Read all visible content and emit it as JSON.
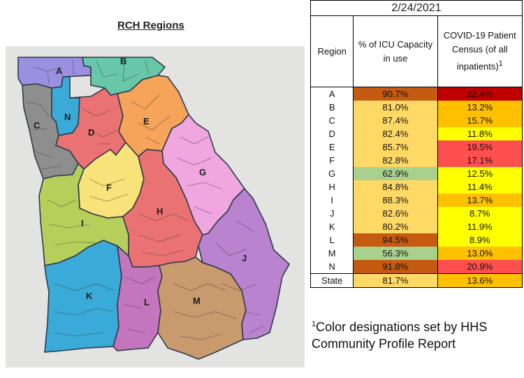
{
  "map": {
    "title": "RCH Regions",
    "regions": [
      {
        "id": "A",
        "color": "#9b8fe0"
      },
      {
        "id": "B",
        "color": "#67c7a8"
      },
      {
        "id": "C",
        "color": "#8e8e8e"
      },
      {
        "id": "N",
        "color": "#3aaad8"
      },
      {
        "id": "D",
        "color": "#ea7272"
      },
      {
        "id": "E",
        "color": "#f5a45a"
      },
      {
        "id": "G",
        "color": "#f0a6df"
      },
      {
        "id": "F",
        "color": "#f8e27a"
      },
      {
        "id": "H",
        "color": "#ea7272"
      },
      {
        "id": "I",
        "color": "#b5cf5a"
      },
      {
        "id": "J",
        "color": "#b983cf"
      },
      {
        "id": "K",
        "color": "#3aaad8"
      },
      {
        "id": "L",
        "color": "#c375bd"
      },
      {
        "id": "M",
        "color": "#c99a6e"
      }
    ]
  },
  "table": {
    "date": "2/24/2021",
    "headers": {
      "region": "Region",
      "icu": "% of ICU Capacity in use",
      "census": "COVID-19 Patient Census (of all inpatients)",
      "census_sup": "1"
    },
    "rows": [
      {
        "region": "A",
        "icu": "90.7%",
        "icu_color": "#c55a11",
        "census": "22.4%",
        "census_color": "#c00000"
      },
      {
        "region": "B",
        "icu": "81.0%",
        "icu_color": "#ffd966",
        "census": "13.2%",
        "census_color": "#ffc000"
      },
      {
        "region": "C",
        "icu": "87.4%",
        "icu_color": "#ffd966",
        "census": "15.7%",
        "census_color": "#ffc000"
      },
      {
        "region": "D",
        "icu": "82.4%",
        "icu_color": "#ffd966",
        "census": "11.8%",
        "census_color": "#ffff00"
      },
      {
        "region": "E",
        "icu": "85.7%",
        "icu_color": "#ffd966",
        "census": "19.5%",
        "census_color": "#ff5050"
      },
      {
        "region": "F",
        "icu": "82.8%",
        "icu_color": "#ffd966",
        "census": "17.1%",
        "census_color": "#ff5050"
      },
      {
        "region": "G",
        "icu": "62.9%",
        "icu_color": "#a9d18e",
        "census": "12.5%",
        "census_color": "#ffff00"
      },
      {
        "region": "H",
        "icu": "84.8%",
        "icu_color": "#ffd966",
        "census": "11.4%",
        "census_color": "#ffff00"
      },
      {
        "region": "I",
        "icu": "88.3%",
        "icu_color": "#ffd966",
        "census": "13.7%",
        "census_color": "#ffc000"
      },
      {
        "region": "J",
        "icu": "82.6%",
        "icu_color": "#ffd966",
        "census": "8.7%",
        "census_color": "#ffff00"
      },
      {
        "region": "K",
        "icu": "80.2%",
        "icu_color": "#ffd966",
        "census": "11.9%",
        "census_color": "#ffff00"
      },
      {
        "region": "L",
        "icu": "94.5%",
        "icu_color": "#c55a11",
        "census": "8.9%",
        "census_color": "#ffff00"
      },
      {
        "region": "M",
        "icu": "56.3%",
        "icu_color": "#a9d18e",
        "census": "13.0%",
        "census_color": "#ffc000"
      },
      {
        "region": "N",
        "icu": "91.8%",
        "icu_color": "#c55a11",
        "census": "20.9%",
        "census_color": "#ff5050"
      }
    ],
    "state": {
      "region": "State",
      "icu": "81.7%",
      "icu_color": "#ffd966",
      "census": "13.6%",
      "census_color": "#ffc000"
    }
  },
  "footnote": {
    "sup": "1",
    "text": "Color designations set by HHS Community Profile Report"
  }
}
